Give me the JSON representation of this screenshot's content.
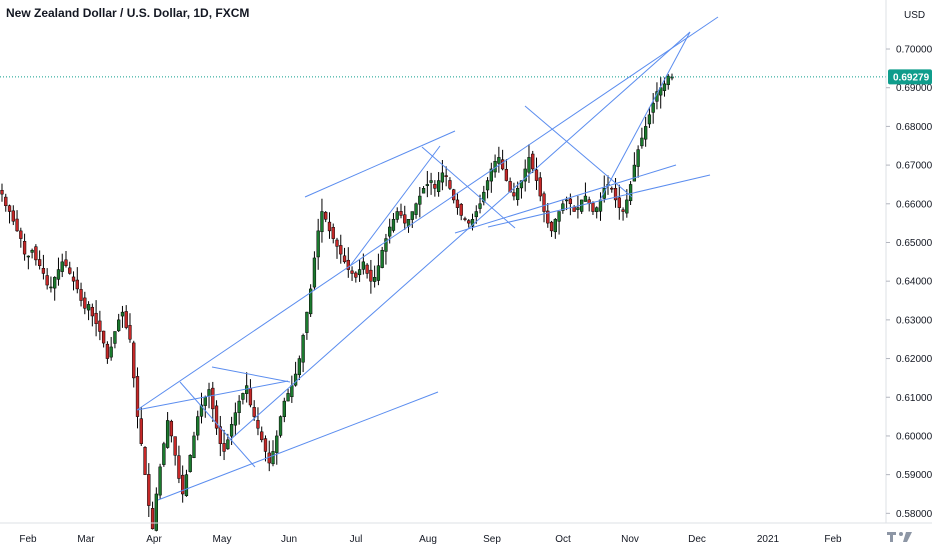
{
  "header": {
    "title": "New Zealand Dollar / U.S. Dollar, 1D, FXCM"
  },
  "price_axis": {
    "unit_label": "USD",
    "current_price": "0.69279",
    "current_price_value": 0.69279,
    "tick_labels": [
      "0.70000",
      "0.69000",
      "0.68000",
      "0.67000",
      "0.66000",
      "0.65000",
      "0.64000",
      "0.63000",
      "0.62000",
      "0.61000",
      "0.60000",
      "0.59000",
      "0.58000"
    ]
  },
  "time_axis": {
    "tick_labels": [
      "Feb",
      "Mar",
      "Apr",
      "May",
      "Jun",
      "Jul",
      "Aug",
      "Sep",
      "Oct",
      "Nov",
      "Dec",
      "2021",
      "Feb"
    ]
  },
  "colors": {
    "bull": "#26a69a",
    "bear": "#ef5350",
    "candle_body_bull": "#1b7a2e",
    "candle_body_bear": "#c62828",
    "trendline": "#5b8def",
    "current_price": "#0f9d8c"
  },
  "logo": {
    "name": "tradingview-logo-icon"
  },
  "chart_data": {
    "type": "candlestick",
    "title": "New Zealand Dollar / U.S. Dollar, 1D, FXCM",
    "ylabel": "USD",
    "ylim": [
      0.5775,
      0.7075
    ],
    "grid": false,
    "x_months": [
      "Feb",
      "Mar",
      "Apr",
      "May",
      "Jun",
      "Jul",
      "Aug",
      "Sep",
      "Oct",
      "Nov",
      "Dec",
      "2021",
      "Feb"
    ],
    "last_close": 0.69279,
    "closes": [
      0.6625,
      0.6595,
      0.658,
      0.6555,
      0.653,
      0.651,
      0.647,
      0.6465,
      0.648,
      0.6455,
      0.644,
      0.642,
      0.639,
      0.6385,
      0.641,
      0.643,
      0.645,
      0.644,
      0.642,
      0.64,
      0.638,
      0.635,
      0.633,
      0.634,
      0.631,
      0.629,
      0.627,
      0.624,
      0.62,
      0.623,
      0.627,
      0.63,
      0.632,
      0.628,
      0.625,
      0.615,
      0.605,
      0.598,
      0.59,
      0.582,
      0.576,
      0.585,
      0.592,
      0.598,
      0.604,
      0.6,
      0.595,
      0.589,
      0.585,
      0.59,
      0.595,
      0.6,
      0.605,
      0.608,
      0.61,
      0.612,
      0.607,
      0.602,
      0.598,
      0.596,
      0.599,
      0.603,
      0.606,
      0.609,
      0.611,
      0.613,
      0.608,
      0.605,
      0.602,
      0.599,
      0.596,
      0.593,
      0.596,
      0.6,
      0.605,
      0.609,
      0.611,
      0.613,
      0.616,
      0.62,
      0.626,
      0.632,
      0.638,
      0.646,
      0.653,
      0.658,
      0.656,
      0.653,
      0.651,
      0.649,
      0.647,
      0.645,
      0.643,
      0.642,
      0.641,
      0.643,
      0.645,
      0.642,
      0.64,
      0.641,
      0.644,
      0.648,
      0.651,
      0.654,
      0.656,
      0.658,
      0.657,
      0.655,
      0.656,
      0.658,
      0.66,
      0.662,
      0.664,
      0.665,
      0.666,
      0.664,
      0.666,
      0.668,
      0.667,
      0.664,
      0.661,
      0.659,
      0.657,
      0.656,
      0.655,
      0.656,
      0.658,
      0.66,
      0.663,
      0.666,
      0.669,
      0.671,
      0.672,
      0.669,
      0.666,
      0.663,
      0.662,
      0.664,
      0.666,
      0.669,
      0.672,
      0.669,
      0.666,
      0.662,
      0.658,
      0.655,
      0.653,
      0.656,
      0.658,
      0.66,
      0.661,
      0.66,
      0.658,
      0.659,
      0.661,
      0.662,
      0.66,
      0.658,
      0.659,
      0.661,
      0.664,
      0.665,
      0.664,
      0.661,
      0.659,
      0.658,
      0.661,
      0.665,
      0.67,
      0.674,
      0.677,
      0.68,
      0.683,
      0.686,
      0.689,
      0.69,
      0.691,
      0.693,
      0.6928
    ]
  }
}
